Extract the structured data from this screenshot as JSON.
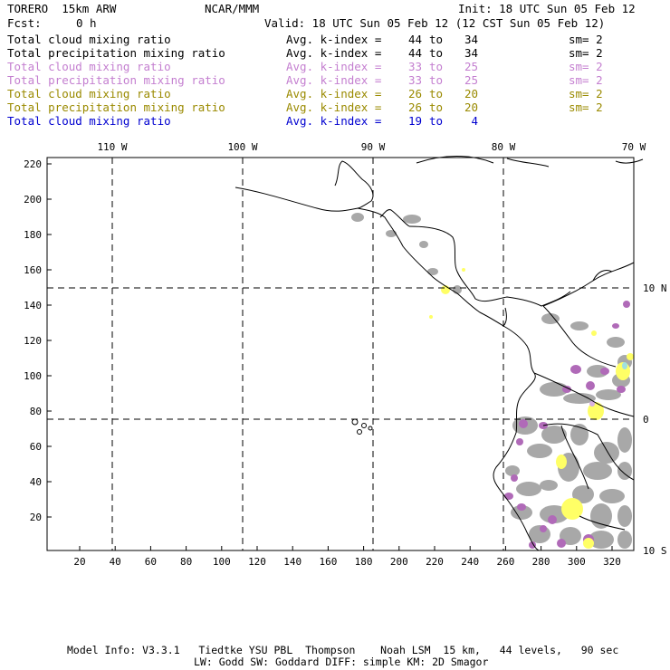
{
  "header": {
    "model": "TORERO  15km ARW",
    "org": "NCAR/MMM",
    "init": "Init: 18 UTC Sun 05 Feb 12",
    "fcst_label": "Fcst:",
    "fcst_value": "0 h",
    "valid": "Valid: 18 UTC Sun 05 Feb 12 (12 CST Sun 05 Feb 12)"
  },
  "legend_rows": [
    {
      "variable": "Total cloud mixing ratio",
      "avg_label": "Avg. k-index =",
      "from": "44",
      "to_label": "to",
      "to": "34",
      "sm": "sm= 2",
      "color": "#000000"
    },
    {
      "variable": "Total precipitation mixing ratio",
      "avg_label": "Avg. k-index =",
      "from": "44",
      "to_label": "to",
      "to": "34",
      "sm": "sm= 2",
      "color": "#000000"
    },
    {
      "variable": "Total cloud mixing ratio",
      "avg_label": "Avg. k-index =",
      "from": "33",
      "to_label": "to",
      "to": "25",
      "sm": "sm= 2",
      "color": "#c47fd0"
    },
    {
      "variable": "Total precipitation mixing ratio",
      "avg_label": "Avg. k-index =",
      "from": "33",
      "to_label": "to",
      "to": "25",
      "sm": "sm= 2",
      "color": "#c47fd0"
    },
    {
      "variable": "Total cloud mixing ratio",
      "avg_label": "Avg. k-index =",
      "from": "26",
      "to_label": "to",
      "to": "20",
      "sm": "sm= 2",
      "color": "#9a8a00"
    },
    {
      "variable": "Total precipitation mixing ratio",
      "avg_label": "Avg. k-index =",
      "from": "26",
      "to_label": "to",
      "to": "20",
      "sm": "sm= 2",
      "color": "#9a8a00"
    },
    {
      "variable": "Total cloud mixing ratio",
      "avg_label": "Avg. k-index =",
      "from": "19",
      "to_label": "to",
      "to": "4",
      "sm": "",
      "color": "#0000d0"
    }
  ],
  "map": {
    "lon_labels": [
      "110 W",
      "100 W",
      "90 W",
      "80 W",
      "70 W"
    ],
    "lat_labels": [
      "10 N",
      "0",
      "10 S"
    ],
    "y_ticks": [
      "220",
      "200",
      "180",
      "160",
      "140",
      "120",
      "100",
      "80",
      "60",
      "40",
      "20"
    ],
    "x_ticks": [
      "20",
      "40",
      "60",
      "80",
      "100",
      "120",
      "140",
      "160",
      "180",
      "200",
      "220",
      "240",
      "260",
      "280",
      "300",
      "320"
    ],
    "colors": {
      "coast": "#000000",
      "gray_field": "#a8a8a8",
      "purple_field": "#b06ab8",
      "yellow_field": "#ffff66",
      "light_purple": "#d8b0e0",
      "cyan_field": "#a0e0e0"
    }
  },
  "footer": {
    "line1": "Model Info: V3.3.1   Tiedtke YSU PBL  Thompson    Noah LSM  15 km,   44 levels,   90 sec",
    "line2": "LW: Godd SW: Goddard DIFF: simple KM: 2D Smagor"
  }
}
